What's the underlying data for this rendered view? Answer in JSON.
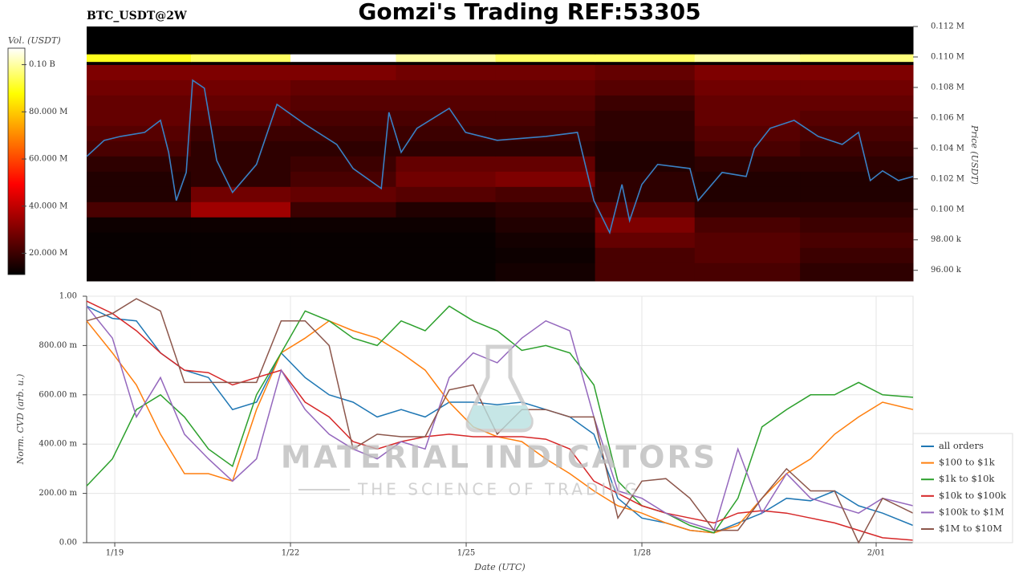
{
  "chart_data": [
    {
      "type": "heatmap",
      "title": "Gomzi's Trading REF:53305",
      "subtitle": "BTC_USDT@2W",
      "colorbar_title": "Vol. (USDT)",
      "y2label": "Price (USDT)",
      "xlim": [
        18.52,
        32.63
      ],
      "y2lim": [
        95300,
        112000
      ],
      "y2ticks": [
        {
          "value": 112000,
          "label": "0.112 M"
        },
        {
          "value": 110000,
          "label": "0.110 M"
        },
        {
          "value": 108000,
          "label": "0.108 M"
        },
        {
          "value": 106000,
          "label": "0.106 M"
        },
        {
          "value": 104000,
          "label": "0.104 M"
        },
        {
          "value": 102000,
          "label": "0.102 M"
        },
        {
          "value": 100000,
          "label": "0.100 M"
        },
        {
          "value": 98000,
          "label": "98.00 k"
        },
        {
          "value": 96000,
          "label": "96.00 k"
        }
      ],
      "clim": [
        11000000,
        107000000
      ],
      "cticks": [
        {
          "value": 100000000,
          "label": "0.10 B"
        },
        {
          "value": 80000000,
          "label": "80.000 M"
        },
        {
          "value": 60000000,
          "label": "60.000 M"
        },
        {
          "value": 40000000,
          "label": "40.000 M"
        },
        {
          "value": 20000000,
          "label": "20.000 M"
        }
      ],
      "x_edges": [
        18.52,
        20.3,
        22,
        23.8,
        25.5,
        27.2,
        28.9,
        30.7,
        32.63
      ],
      "y_edges": [
        95300,
        96500,
        97500,
        98500,
        99500,
        100500,
        101500,
        102500,
        103500,
        104500,
        105500,
        106500,
        107500,
        108500,
        109500,
        109700,
        110200,
        112000
      ],
      "z": [
        [
          12000000,
          12000000,
          12000000,
          12000000,
          14000000,
          22000000,
          22000000,
          18000000
        ],
        [
          12000000,
          12000000,
          12000000,
          12000000,
          13000000,
          22000000,
          24000000,
          20000000
        ],
        [
          12000000,
          12000000,
          12000000,
          12000000,
          14000000,
          26000000,
          24000000,
          22000000
        ],
        [
          13000000,
          13000000,
          13000000,
          13000000,
          16000000,
          30000000,
          22000000,
          20000000
        ],
        [
          22000000,
          35000000,
          20000000,
          16000000,
          18000000,
          24000000,
          18000000,
          18000000
        ],
        [
          16000000,
          28000000,
          26000000,
          24000000,
          22000000,
          18000000,
          16000000,
          16000000
        ],
        [
          16000000,
          18000000,
          22000000,
          28000000,
          30000000,
          18000000,
          16000000,
          16000000
        ],
        [
          18000000,
          18000000,
          20000000,
          26000000,
          26000000,
          16000000,
          18000000,
          18000000
        ],
        [
          22000000,
          18000000,
          18000000,
          18000000,
          18000000,
          16000000,
          22000000,
          20000000
        ],
        [
          24000000,
          20000000,
          20000000,
          20000000,
          20000000,
          18000000,
          24000000,
          22000000
        ],
        [
          26000000,
          24000000,
          22000000,
          22000000,
          22000000,
          18000000,
          26000000,
          24000000
        ],
        [
          26000000,
          26000000,
          24000000,
          24000000,
          24000000,
          20000000,
          26000000,
          26000000
        ],
        [
          28000000,
          28000000,
          26000000,
          26000000,
          26000000,
          24000000,
          28000000,
          28000000
        ],
        [
          30000000,
          30000000,
          30000000,
          28000000,
          28000000,
          26000000,
          30000000,
          30000000
        ],
        [
          12000000,
          12000000,
          12000000,
          12000000,
          12000000,
          12000000,
          12000000,
          12000000
        ],
        [
          90000000,
          95000000,
          108000000,
          100000000,
          95000000,
          95000000,
          100000000,
          97000000
        ],
        [
          11000000,
          11000000,
          11000000,
          11000000,
          11000000,
          11000000,
          11000000,
          11000000
        ]
      ],
      "price_line": {
        "color": "#3a80c4",
        "x": [
          18.52,
          18.82,
          19.1,
          19.51,
          19.78,
          19.92,
          20.05,
          20.22,
          20.33,
          20.53,
          20.74,
          21.01,
          21.42,
          21.77,
          22.25,
          22.79,
          23.07,
          23.55,
          23.68,
          23.89,
          24.16,
          24.71,
          24.99,
          25.53,
          26.36,
          26.9,
          27.18,
          27.45,
          27.66,
          27.79,
          28.0,
          28.27,
          28.82,
          28.96,
          29.37,
          29.78,
          29.92,
          30.19,
          30.6,
          31.01,
          31.42,
          31.7,
          31.9,
          32.11,
          32.38,
          32.63
        ],
        "values": [
          103470,
          104530,
          104790,
          105050,
          105840,
          103740,
          100580,
          102420,
          108470,
          107950,
          103210,
          101110,
          102950,
          106890,
          105580,
          104260,
          102680,
          101370,
          106370,
          103740,
          105320,
          106630,
          105050,
          104530,
          104790,
          105050,
          100580,
          98470,
          101630,
          99260,
          101630,
          102950,
          102680,
          100580,
          102420,
          102160,
          104000,
          105320,
          105840,
          104790,
          104260,
          105050,
          101890,
          102530,
          101890,
          102160
        ]
      }
    },
    {
      "type": "line",
      "xlabel": "Date (UTC)",
      "ylabel": "Norm. CVD (arb. u.)",
      "watermark": [
        "MATERIAL INDICATORS",
        "THE SCIENCE OF TRADING"
      ],
      "grid": true,
      "legend": "lower-right-outside",
      "xlim": [
        18.52,
        32.63
      ],
      "xticks": [
        {
          "value": 19,
          "label": "1/19"
        },
        {
          "value": 22,
          "label": "1/22"
        },
        {
          "value": 25,
          "label": "1/25"
        },
        {
          "value": 28,
          "label": "1/28"
        },
        {
          "value": 32,
          "label": "2/01"
        }
      ],
      "ylim": [
        0,
        1
      ],
      "yticks": [
        {
          "value": 0,
          "label": "0.00"
        },
        {
          "value": 0.2,
          "label": "200.00 m"
        },
        {
          "value": 0.4,
          "label": "400.00 m"
        },
        {
          "value": 0.6,
          "label": "600.00 m"
        },
        {
          "value": 0.8,
          "label": "800.00 m"
        },
        {
          "value": 1,
          "label": "1.00"
        }
      ],
      "x": [
        18.52,
        18.96,
        19.37,
        19.78,
        20.19,
        20.6,
        21.01,
        21.42,
        21.84,
        22.25,
        22.66,
        23.07,
        23.48,
        23.89,
        24.3,
        24.71,
        25.12,
        25.53,
        25.95,
        26.36,
        26.77,
        27.18,
        27.59,
        28.0,
        28.41,
        28.82,
        29.23,
        29.64,
        30.05,
        30.47,
        30.88,
        31.29,
        31.7,
        32.11,
        32.63
      ],
      "series": [
        {
          "name": "all orders",
          "color": "#1f77b4",
          "values": [
            0.96,
            0.91,
            0.9,
            0.77,
            0.7,
            0.67,
            0.54,
            0.57,
            0.77,
            0.67,
            0.6,
            0.57,
            0.51,
            0.54,
            0.51,
            0.57,
            0.57,
            0.56,
            0.57,
            0.54,
            0.51,
            0.44,
            0.18,
            0.1,
            0.08,
            0.05,
            0.04,
            0.08,
            0.12,
            0.18,
            0.17,
            0.21,
            0.15,
            0.12,
            0.07
          ]
        },
        {
          "name": "$100 to $1k",
          "color": "#ff7f0e",
          "values": [
            0.9,
            0.77,
            0.64,
            0.44,
            0.28,
            0.28,
            0.25,
            0.54,
            0.77,
            0.83,
            0.9,
            0.86,
            0.83,
            0.77,
            0.7,
            0.57,
            0.47,
            0.43,
            0.41,
            0.34,
            0.28,
            0.21,
            0.15,
            0.12,
            0.08,
            0.05,
            0.04,
            0.07,
            0.18,
            0.28,
            0.34,
            0.44,
            0.51,
            0.57,
            0.54
          ]
        },
        {
          "name": "$1k to $10k",
          "color": "#2ca02c",
          "values": [
            0.23,
            0.34,
            0.54,
            0.6,
            0.51,
            0.38,
            0.31,
            0.6,
            0.77,
            0.94,
            0.9,
            0.83,
            0.8,
            0.9,
            0.86,
            0.96,
            0.9,
            0.86,
            0.78,
            0.8,
            0.77,
            0.64,
            0.25,
            0.15,
            0.12,
            0.07,
            0.04,
            0.18,
            0.47,
            0.54,
            0.6,
            0.6,
            0.65,
            0.6,
            0.59
          ]
        },
        {
          "name": "$10k to $100k",
          "color": "#d62728",
          "values": [
            0.98,
            0.93,
            0.86,
            0.77,
            0.7,
            0.69,
            0.64,
            0.67,
            0.7,
            0.57,
            0.51,
            0.41,
            0.38,
            0.41,
            0.43,
            0.44,
            0.43,
            0.43,
            0.43,
            0.42,
            0.38,
            0.25,
            0.2,
            0.15,
            0.12,
            0.1,
            0.08,
            0.12,
            0.13,
            0.12,
            0.1,
            0.08,
            0.05,
            0.02,
            0.01
          ]
        },
        {
          "name": "$100k to $1M",
          "color": "#9467bd",
          "values": [
            0.96,
            0.83,
            0.51,
            0.67,
            0.44,
            0.34,
            0.25,
            0.34,
            0.7,
            0.54,
            0.44,
            0.38,
            0.34,
            0.41,
            0.38,
            0.67,
            0.77,
            0.73,
            0.83,
            0.9,
            0.86,
            0.51,
            0.21,
            0.18,
            0.12,
            0.08,
            0.05,
            0.38,
            0.12,
            0.28,
            0.18,
            0.15,
            0.12,
            0.18,
            0.15
          ]
        },
        {
          "name": "$1M to $10M",
          "color": "#8c564b",
          "values": [
            0.9,
            0.93,
            0.99,
            0.94,
            0.65,
            0.65,
            0.65,
            0.65,
            0.9,
            0.9,
            0.8,
            0.38,
            0.44,
            0.43,
            0.43,
            0.62,
            0.64,
            0.44,
            0.54,
            0.54,
            0.51,
            0.51,
            0.1,
            0.25,
            0.26,
            0.18,
            0.05,
            0.05,
            0.18,
            0.3,
            0.21,
            0.21,
            0,
            0.18,
            0.12
          ]
        }
      ]
    }
  ]
}
